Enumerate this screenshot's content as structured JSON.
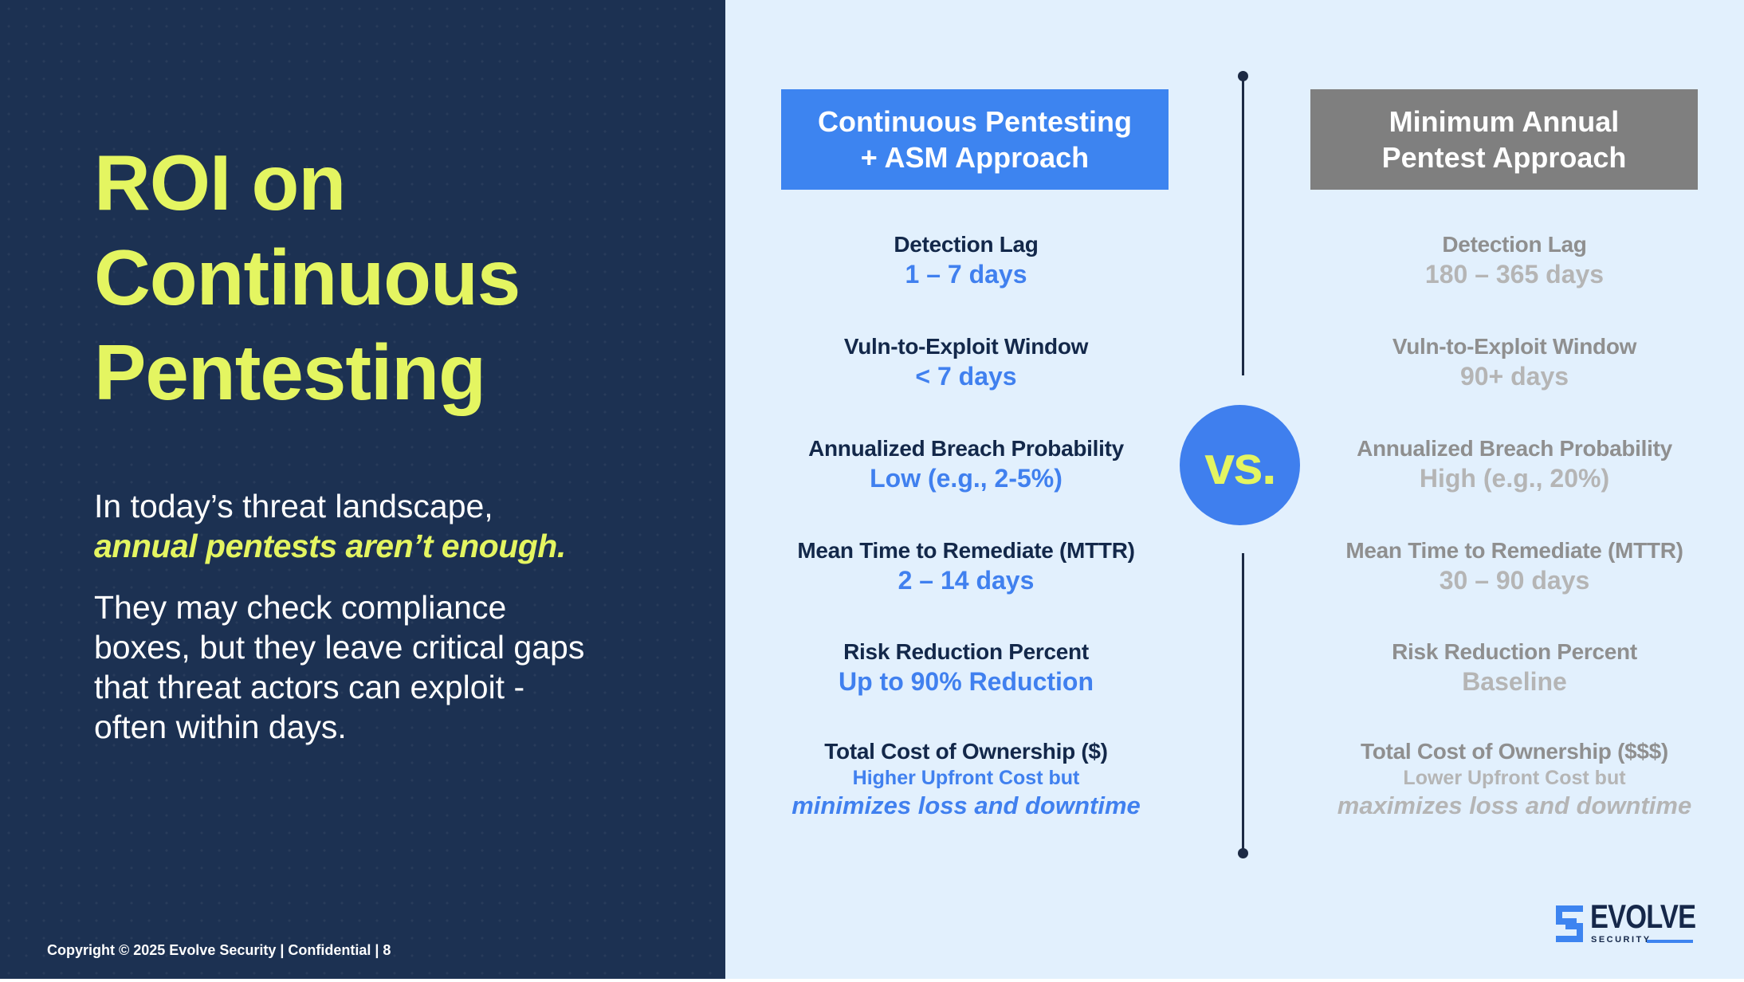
{
  "slide": {
    "title_lines": [
      "ROI on",
      "Continuous",
      "Pentesting"
    ],
    "intro": "In today’s threat landscape,",
    "intro_emphasis": "annual pentests aren’t enough.",
    "body_lines": [
      "They may check compliance",
      "boxes, but they leave critical gaps",
      "that threat actors can exploit  -",
      "often within days."
    ],
    "footer": "Copyright © 2025 Evolve Security | Confidential | 8"
  },
  "comparison": {
    "continuous": {
      "header_lines": [
        "Continuous Pentesting",
        "+ ASM Approach"
      ],
      "metrics": [
        {
          "label": "Detection Lag",
          "value": "1 – 7 days"
        },
        {
          "label": "Vuln-to-Exploit Window",
          "value": "< 7 days"
        },
        {
          "label": "Annualized Breach Probability",
          "value": "Low (e.g., 2-5%)"
        },
        {
          "label": "Mean Time to Remediate (MTTR)",
          "value": "2 – 14 days"
        },
        {
          "label": "Risk Reduction Percent",
          "value": "Up to 90% Reduction"
        }
      ],
      "cost": {
        "label": "Total Cost of Ownership ($)",
        "line1": "Higher Upfront Cost but",
        "line2": "minimizes loss and downtime"
      }
    },
    "annual": {
      "header_lines": [
        "Minimum Annual",
        "Pentest Approach"
      ],
      "metrics": [
        {
          "label": "Detection Lag",
          "value": "180 – 365 days"
        },
        {
          "label": "Vuln-to-Exploit Window",
          "value": "90+ days"
        },
        {
          "label": "Annualized Breach Probability",
          "value": "High (e.g., 20%)"
        },
        {
          "label": "Mean Time to Remediate (MTTR)",
          "value": "30 – 90 days"
        },
        {
          "label": "Risk Reduction Percent",
          "value": "Baseline"
        }
      ],
      "cost": {
        "label": "Total Cost of Ownership ($$$)",
        "line1": "Lower Upfront Cost but",
        "line2": "maximizes loss and downtime"
      }
    },
    "vs_label": "vs."
  },
  "logo": {
    "word": "EVOLVE",
    "sub": "SECURITY"
  },
  "colors": {
    "navy": "#1c3152",
    "accent_yellow": "#e4f561",
    "accent_blue": "#3d84f0",
    "gray_header": "#7f7f7f",
    "light_bg": "#e2f0fd"
  }
}
